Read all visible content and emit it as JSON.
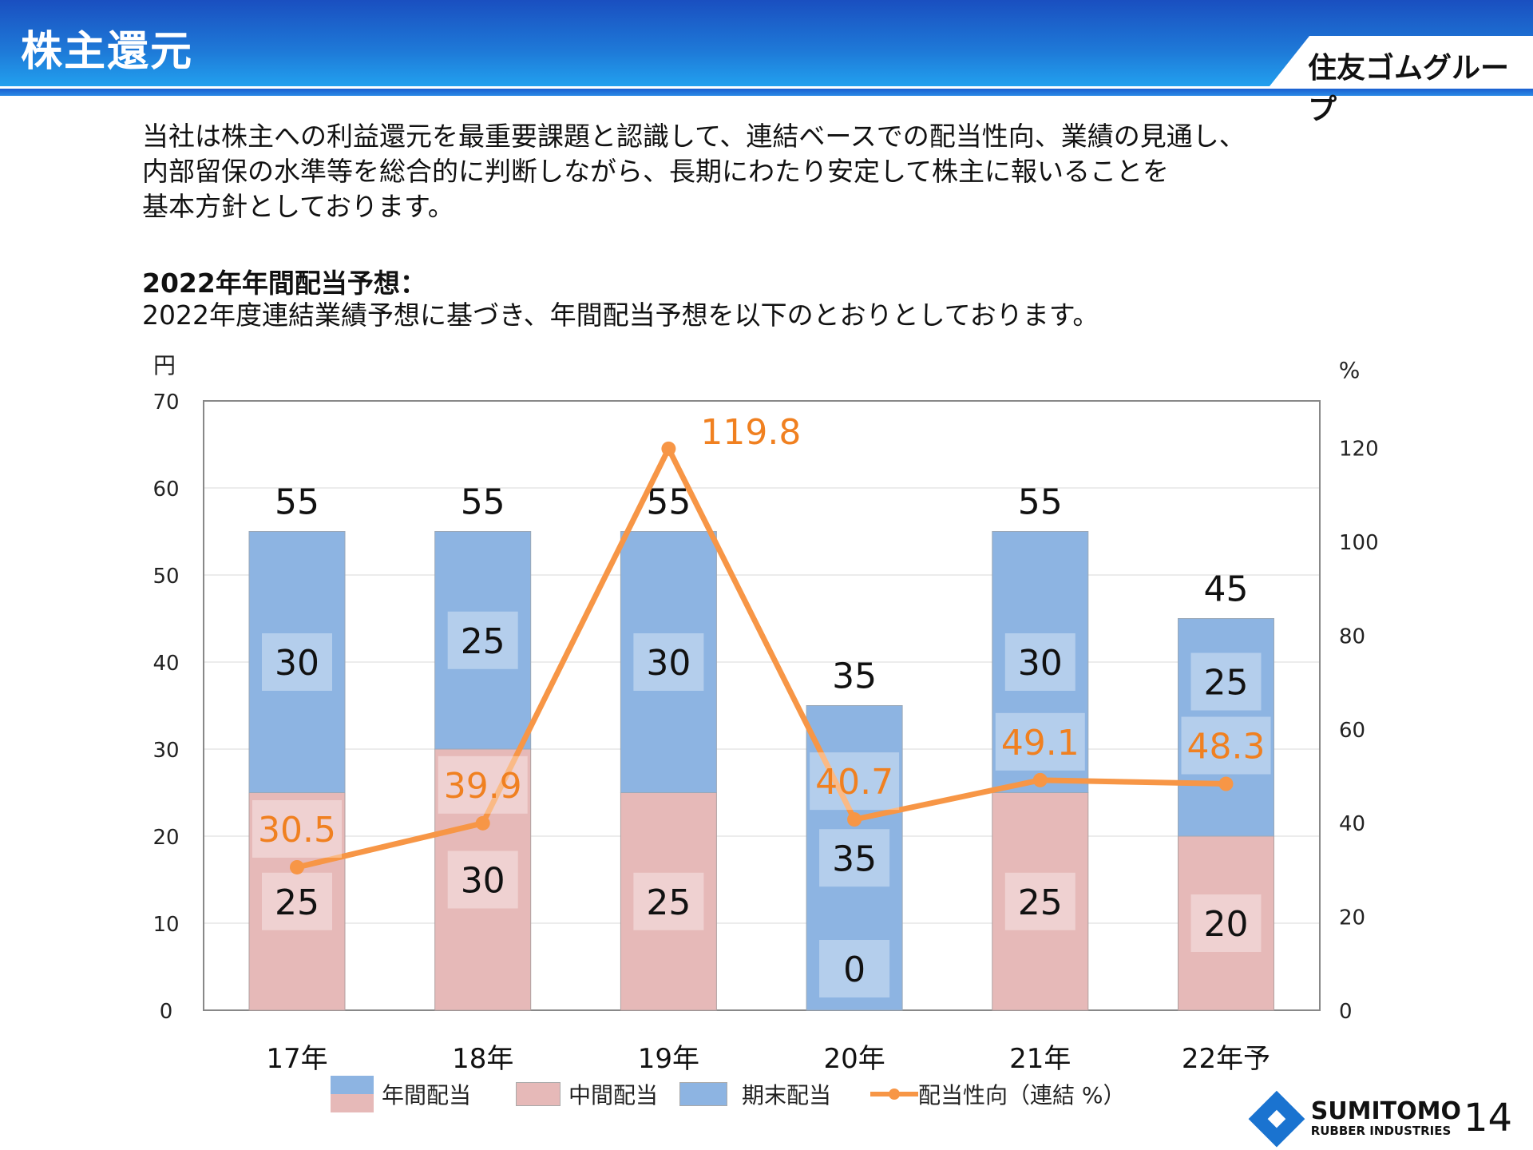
{
  "header": {
    "title": "株主還元",
    "group_name": "住友ゴムグループ"
  },
  "intro": {
    "lines": [
      "当社は株主への利益還元を最重要課題と認識して、連結ベースでの配当性向、業績の見通し、",
      "内部留保の水準等を総合的に判断しながら、長期にわたり安定して株主に報いることを",
      "基本方針としております。"
    ],
    "heading": "2022年年間配当予想：",
    "subtext": "2022年度連結業績予想に基づき、年間配当予想を以下のとおりとしております。"
  },
  "chart_data": {
    "type": "bar",
    "stacked": true,
    "categories": [
      "17年",
      "18年",
      "19年",
      "20年",
      "21年",
      "22年予"
    ],
    "left_axis": {
      "unit": "円",
      "range": [
        0,
        70
      ],
      "ticks": [
        0,
        10,
        20,
        30,
        40,
        50,
        60,
        70
      ]
    },
    "right_axis": {
      "unit": "%",
      "range": [
        0,
        130
      ],
      "ticks": [
        0,
        20,
        40,
        60,
        80,
        100,
        120
      ]
    },
    "grid": true,
    "series": [
      {
        "name": "中間配当",
        "type": "bar",
        "axis": "left",
        "color": "#e6b9b8",
        "values": [
          25,
          30,
          25,
          0,
          25,
          20
        ]
      },
      {
        "name": "期末配当",
        "type": "bar",
        "axis": "left",
        "color": "#8db4e2",
        "values": [
          30,
          25,
          30,
          35,
          30,
          25
        ]
      },
      {
        "name": "配当性向（連結 %）",
        "type": "line",
        "axis": "right",
        "color": "#f79646",
        "values": [
          30.5,
          39.9,
          119.8,
          40.7,
          49.1,
          48.3
        ]
      }
    ],
    "totals": [
      55,
      55,
      55,
      35,
      55,
      45
    ],
    "legend": {
      "placement": "bottom",
      "annual_label": "年間配当",
      "interim_label": "中間配当",
      "yearend_label": "期末配当",
      "payout_label": "配当性向（連結 %）"
    }
  },
  "footer": {
    "company_line1": "SUMITOMO",
    "company_line2": "RUBBER INDUSTRIES",
    "page_number": "14"
  }
}
